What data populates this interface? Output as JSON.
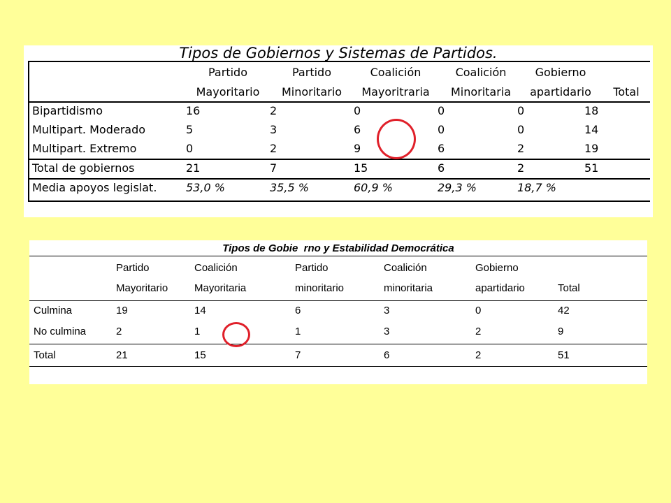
{
  "table1": {
    "title": "Tipos de Gobiernos y Sistemas de Partidos.",
    "col_headers": [
      [
        "Partido",
        "Mayoritario"
      ],
      [
        "Partido",
        "Minoritario"
      ],
      [
        "Coalición",
        "Mayoritraria"
      ],
      [
        "Coalición",
        "Minoritaria"
      ],
      [
        "Gobierno",
        "apartidario"
      ],
      [
        "",
        "Total"
      ]
    ],
    "rows": [
      {
        "label": "Bipartidismo",
        "values": [
          "16",
          "2",
          "0",
          "0",
          "0",
          "18"
        ]
      },
      {
        "label": "Multipart. Moderado",
        "values": [
          "5",
          "3",
          "6",
          "0",
          "0",
          "14"
        ]
      },
      {
        "label": "Multipart. Extremo",
        "values": [
          "0",
          "2",
          "9",
          "6",
          "2",
          "19"
        ]
      },
      {
        "label": "Total de gobiernos",
        "values": [
          "21",
          "7",
          "15",
          "6",
          "2",
          "51"
        ]
      },
      {
        "label": "Media apoyos legislat.",
        "values": [
          "53,0 %",
          "35,5 %",
          "60,9 %",
          "29,3 %",
          "18,7 %",
          ""
        ]
      }
    ]
  },
  "table2": {
    "title": "Tipos de Gobie  rno y Estabilidad Democrática",
    "col_headers": [
      [
        "Partido",
        "Mayoritario"
      ],
      [
        "Coalición",
        "Mayoritaria"
      ],
      [
        "Partido",
        "minoritario"
      ],
      [
        "Coalición",
        "minoritaria"
      ],
      [
        "Gobierno",
        "apartidario"
      ],
      [
        "",
        "Total"
      ]
    ],
    "rows": [
      {
        "label": "Culmina",
        "values": [
          "19",
          "14",
          "6",
          "3",
          "0",
          "42"
        ]
      },
      {
        "label": "No culmina",
        "values": [
          "2",
          "1",
          "1",
          "3",
          "2",
          "9"
        ]
      },
      {
        "label": "Total",
        "values": [
          "21",
          "15",
          "7",
          "6",
          "2",
          "51"
        ]
      }
    ]
  },
  "colors": {
    "background": "#FFFF99",
    "panel": "#FFFFFF",
    "highlight_circle": "#E0202A"
  }
}
